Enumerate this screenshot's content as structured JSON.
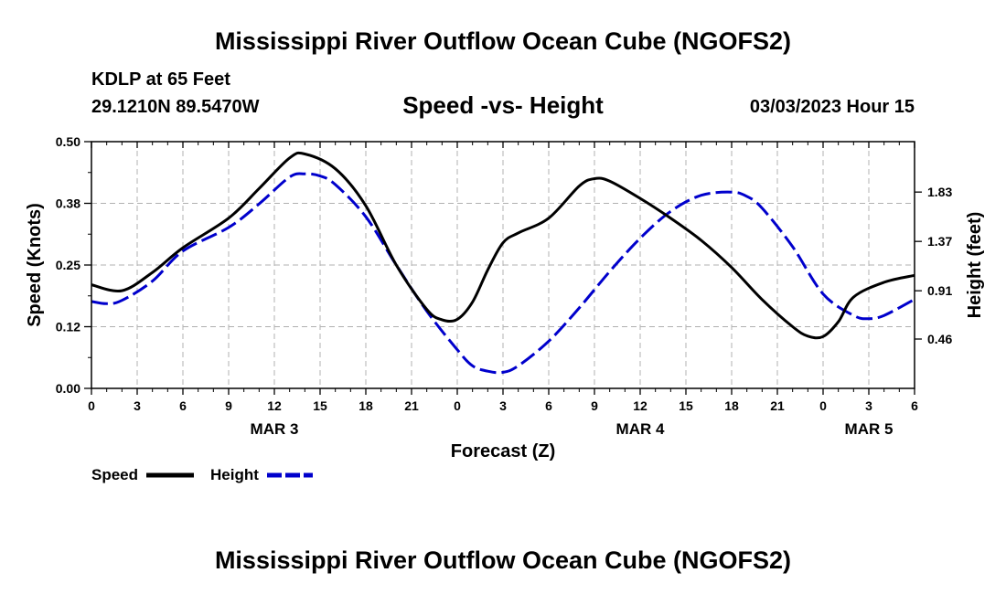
{
  "header": {
    "title": "Mississippi River Outflow Ocean Cube (NGOFS2)",
    "station": "KDLP at 65 Feet",
    "coords": "29.1210N  89.5470W",
    "subtitle": "Speed -vs- Height",
    "datetime": "03/03/2023 Hour 15"
  },
  "footer": {
    "title": "Mississippi River Outflow Ocean Cube (NGOFS2)"
  },
  "chart_data": {
    "type": "line",
    "xlabel": "Forecast (Z)",
    "ylabel_left": "Speed (Knots)",
    "ylabel_right": "Height (feet)",
    "xlim": [
      0,
      54
    ],
    "x_ticks": [
      0,
      3,
      6,
      9,
      12,
      15,
      18,
      21,
      24,
      27,
      30,
      33,
      36,
      39,
      42,
      45,
      48,
      51,
      54
    ],
    "x_tick_labels": [
      "0",
      "3",
      "6",
      "9",
      "12",
      "15",
      "18",
      "21",
      "0",
      "3",
      "6",
      "9",
      "12",
      "15",
      "18",
      "21",
      "0",
      "3",
      "6"
    ],
    "day_labels": [
      {
        "x": 12,
        "text": "MAR 3"
      },
      {
        "x": 36,
        "text": "MAR 4"
      },
      {
        "x": 51,
        "text": "MAR 5"
      }
    ],
    "ylim_left": [
      0,
      0.5
    ],
    "y_ticks_left": [
      0,
      0.125,
      0.25,
      0.375,
      0.5
    ],
    "y_tick_labels_left": [
      "0.00",
      "0.12",
      "0.25",
      "0.38",
      "0.50"
    ],
    "ylim_right": [
      0.0,
      2.3
    ],
    "y_ticks_right": [
      0.46,
      0.91,
      1.37,
      1.83
    ],
    "y_tick_labels_right": [
      "0.46",
      "0.91",
      "1.37",
      "1.83"
    ],
    "grid": true,
    "legend": [
      {
        "name": "Speed",
        "color": "#000000",
        "style": "solid"
      },
      {
        "name": "Height",
        "color": "#0000cc",
        "style": "dashed"
      }
    ],
    "series": [
      {
        "name": "Speed",
        "axis": "left",
        "color": "#000000",
        "x": [
          0,
          2,
          4,
          6,
          9,
          11,
          13,
          14,
          16,
          18,
          20,
          22,
          23,
          24,
          25,
          26,
          27,
          28,
          30,
          32,
          33,
          34,
          36,
          38,
          40,
          42,
          44,
          46,
          47,
          48,
          49,
          50,
          52,
          54
        ],
        "values": [
          0.21,
          0.198,
          0.235,
          0.285,
          0.345,
          0.405,
          0.467,
          0.475,
          0.445,
          0.37,
          0.25,
          0.16,
          0.139,
          0.14,
          0.175,
          0.24,
          0.295,
          0.315,
          0.345,
          0.41,
          0.425,
          0.42,
          0.385,
          0.345,
          0.3,
          0.245,
          0.18,
          0.125,
          0.106,
          0.105,
          0.135,
          0.185,
          0.215,
          0.229
        ]
      },
      {
        "name": "Height",
        "axis": "right",
        "color": "#0000cc",
        "x": [
          0,
          1,
          2,
          4,
          6,
          9,
          11,
          13,
          14,
          15,
          16,
          18,
          20,
          22,
          24,
          25,
          26,
          27,
          28,
          30,
          32,
          34,
          36,
          38,
          40,
          42,
          43,
          44,
          46,
          48,
          50,
          51,
          52,
          54
        ],
        "values": [
          0.81,
          0.79,
          0.82,
          1.0,
          1.28,
          1.5,
          1.72,
          1.97,
          2.0,
          1.98,
          1.9,
          1.6,
          1.15,
          0.72,
          0.36,
          0.21,
          0.16,
          0.15,
          0.21,
          0.44,
          0.75,
          1.09,
          1.4,
          1.65,
          1.8,
          1.83,
          1.79,
          1.68,
          1.32,
          0.88,
          0.68,
          0.65,
          0.68,
          0.83
        ]
      }
    ]
  }
}
